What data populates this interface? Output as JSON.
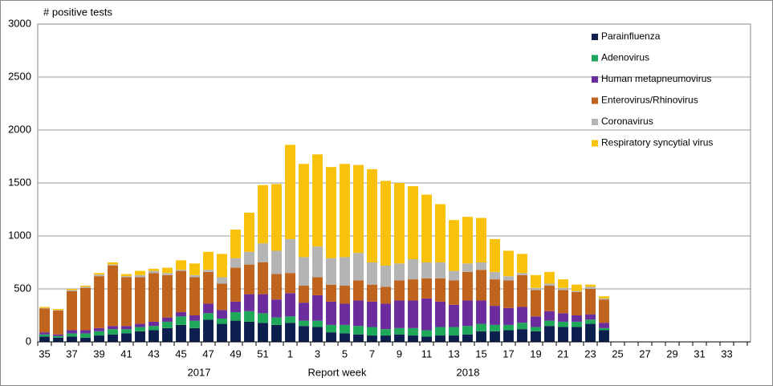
{
  "chart_data": {
    "type": "stacked_bar",
    "y_axis_title": "# positive tests",
    "x_axis_title": "Report  week",
    "annotations": [
      "2017",
      "2018"
    ],
    "categories": [
      "35",
      null,
      "37",
      null,
      "39",
      null,
      "41",
      null,
      "43",
      null,
      "45",
      null,
      "47",
      null,
      "49",
      null,
      "51",
      null,
      "1",
      null,
      "3",
      null,
      "5",
      null,
      "7",
      null,
      "9",
      null,
      "11",
      null,
      "13",
      null,
      "15",
      null,
      "17",
      null,
      "19",
      null,
      "21",
      null,
      "23",
      null,
      "25",
      null,
      "27",
      null,
      "29",
      null,
      "31",
      null,
      "33",
      null
    ],
    "ylim": [
      0,
      3000
    ],
    "yticks": [
      0,
      500,
      1000,
      1500,
      2000,
      2500,
      3000
    ],
    "grid": true,
    "legend": "top-right",
    "series": [
      {
        "name": "Parainfluenza",
        "color": "#0d1f4f",
        "values": [
          50,
          40,
          50,
          40,
          60,
          70,
          80,
          100,
          110,
          130,
          160,
          130,
          210,
          170,
          200,
          190,
          180,
          160,
          180,
          150,
          140,
          90,
          80,
          70,
          60,
          60,
          70,
          60,
          50,
          60,
          60,
          70,
          100,
          100,
          110,
          120,
          100,
          150,
          140,
          140,
          170,
          110,
          null,
          null,
          null,
          null,
          null,
          null,
          null,
          null,
          null,
          null
        ]
      },
      {
        "name": "Adenovirus",
        "color": "#1fa85a",
        "values": [
          20,
          15,
          30,
          40,
          40,
          50,
          40,
          40,
          40,
          60,
          80,
          70,
          60,
          50,
          80,
          100,
          90,
          70,
          60,
          50,
          60,
          70,
          80,
          80,
          80,
          60,
          60,
          70,
          60,
          80,
          80,
          80,
          70,
          60,
          50,
          60,
          40,
          50,
          50,
          50,
          40,
          20,
          null,
          null,
          null,
          null,
          null,
          null,
          null,
          null,
          null,
          null
        ]
      },
      {
        "name": "Human metapneumovirus",
        "color": "#6b2d9e",
        "values": [
          20,
          15,
          30,
          30,
          30,
          30,
          30,
          30,
          40,
          40,
          40,
          50,
          90,
          80,
          100,
          160,
          180,
          170,
          220,
          170,
          240,
          220,
          200,
          240,
          240,
          240,
          260,
          260,
          300,
          240,
          210,
          240,
          220,
          180,
          160,
          150,
          100,
          90,
          80,
          60,
          50,
          50,
          null,
          null,
          null,
          null,
          null,
          null,
          null,
          null,
          null,
          null
        ]
      },
      {
        "name": "Enterovirus/Rhinovirus",
        "color": "#c0631c",
        "values": [
          225,
          225,
          370,
          400,
          490,
          570,
          460,
          440,
          460,
          400,
          390,
          360,
          300,
          250,
          320,
          280,
          300,
          240,
          190,
          160,
          170,
          160,
          170,
          190,
          160,
          160,
          190,
          200,
          190,
          220,
          230,
          270,
          290,
          250,
          260,
          300,
          250,
          240,
          220,
          220,
          240,
          220,
          null,
          null,
          null,
          null,
          null,
          null,
          null,
          null,
          null,
          null
        ]
      },
      {
        "name": "Coronavirus",
        "color": "#b4b4b4",
        "values": [
          5,
          5,
          10,
          10,
          15,
          10,
          10,
          20,
          20,
          20,
          10,
          20,
          20,
          60,
          90,
          120,
          180,
          220,
          320,
          270,
          290,
          250,
          270,
          260,
          210,
          200,
          160,
          190,
          150,
          150,
          90,
          80,
          70,
          70,
          40,
          20,
          20,
          20,
          20,
          10,
          20,
          10,
          null,
          null,
          null,
          null,
          null,
          null,
          null,
          null,
          null,
          null
        ]
      },
      {
        "name": "Respiratory syncytial virus",
        "color": "#f9c20a",
        "values": [
          10,
          10,
          10,
          10,
          15,
          20,
          20,
          40,
          20,
          50,
          90,
          110,
          170,
          220,
          270,
          370,
          550,
          630,
          890,
          880,
          870,
          860,
          880,
          830,
          880,
          800,
          760,
          690,
          640,
          550,
          480,
          440,
          420,
          310,
          240,
          180,
          120,
          110,
          80,
          60,
          20,
          20,
          null,
          null,
          null,
          null,
          null,
          null,
          null,
          null,
          null,
          null
        ]
      }
    ]
  }
}
